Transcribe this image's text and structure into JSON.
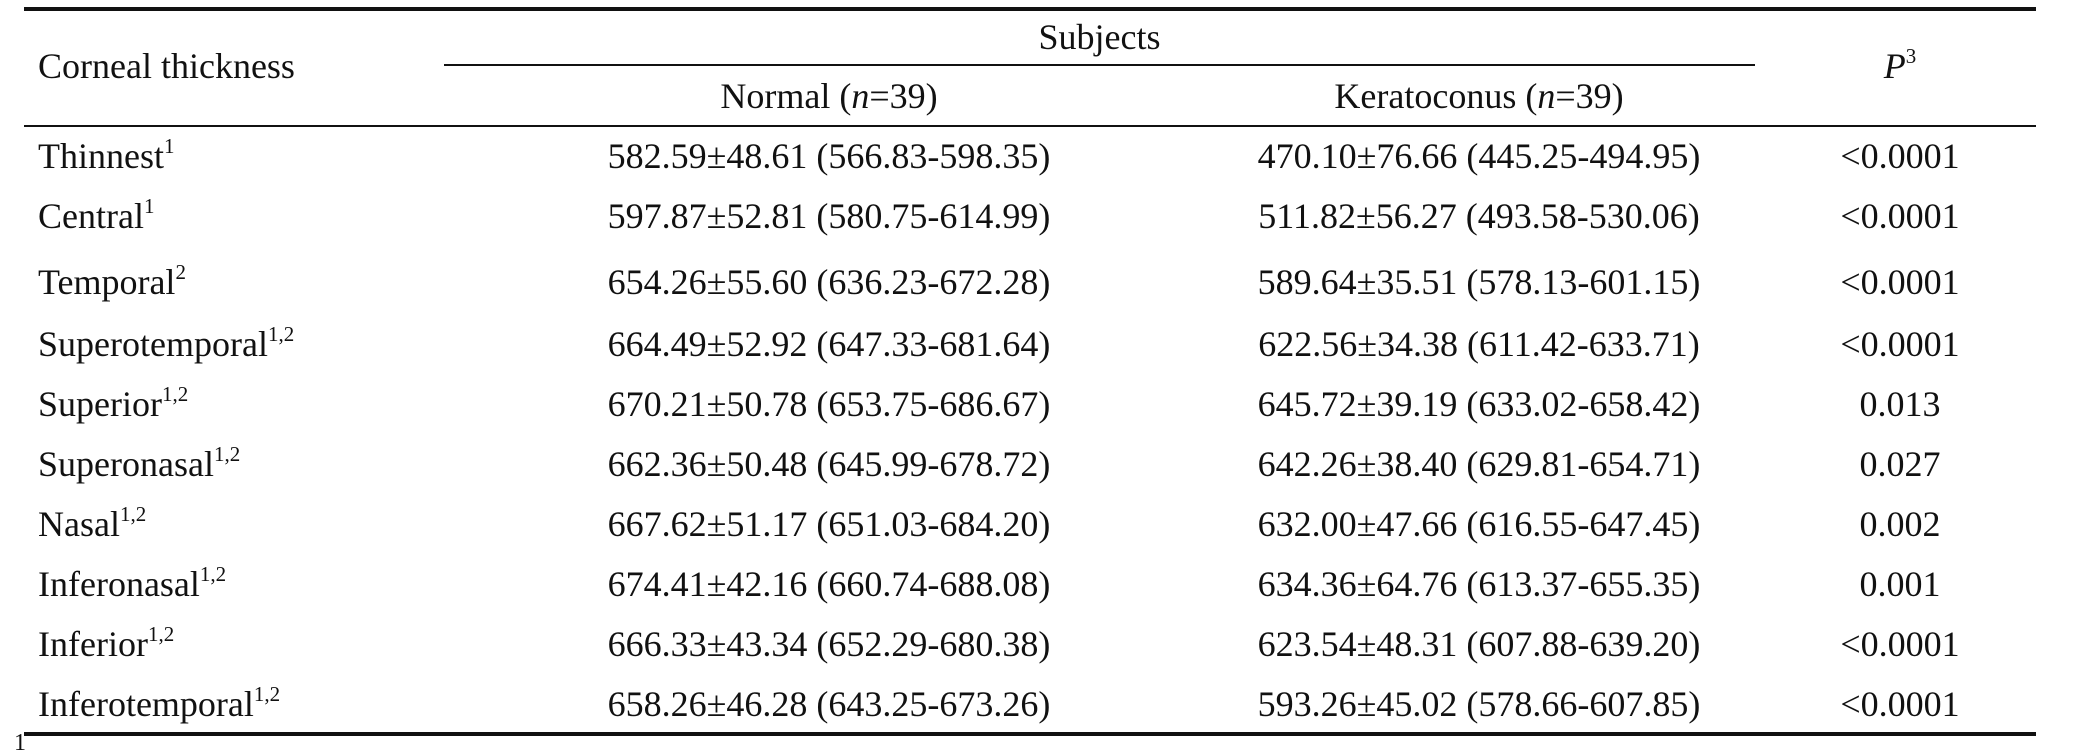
{
  "table": {
    "header": {
      "label_col": "Corneal thickness",
      "group": "Subjects",
      "normal_pre": "Normal (",
      "normal_n": "n",
      "normal_post": "=39)",
      "kera_pre": "Keratoconus (",
      "kera_n": "n",
      "kera_post": "=39)",
      "p_label": "P",
      "p_sup": "3"
    },
    "rows": [
      {
        "name": "Thinnest",
        "sup": "1",
        "normal": "582.59±48.61 (566.83-598.35)",
        "kera": "470.10±76.66 (445.25-494.95)",
        "p": "<0.0001"
      },
      {
        "name": "Central",
        "sup": "1",
        "normal": "597.87±52.81 (580.75-614.99)",
        "kera": "511.82±56.27 (493.58-530.06)",
        "p": "<0.0001"
      },
      {
        "name": "Temporal",
        "sup": "2",
        "normal": "654.26±55.60 (636.23-672.28)",
        "kera": "589.64±35.51 (578.13-601.15)",
        "p": "<0.0001"
      },
      {
        "name": "Superotemporal",
        "sup": "1,2",
        "normal": "664.49±52.92 (647.33-681.64)",
        "kera": "622.56±34.38 (611.42-633.71)",
        "p": "<0.0001"
      },
      {
        "name": "Superior",
        "sup": "1,2",
        "normal": "670.21±50.78 (653.75-686.67)",
        "kera": "645.72±39.19 (633.02-658.42)",
        "p": "0.013"
      },
      {
        "name": "Superonasal",
        "sup": "1,2",
        "normal": "662.36±50.48 (645.99-678.72)",
        "kera": "642.26±38.40 (629.81-654.71)",
        "p": "0.027"
      },
      {
        "name": "Nasal",
        "sup": "1,2",
        "normal": "667.62±51.17 (651.03-684.20)",
        "kera": "632.00±47.66 (616.55-647.45)",
        "p": "0.002"
      },
      {
        "name": "Inferonasal",
        "sup": "1,2",
        "normal": "674.41±42.16 (660.74-688.08)",
        "kera": "634.36±64.76 (613.37-655.35)",
        "p": "0.001"
      },
      {
        "name": "Inferior",
        "sup": "1,2",
        "normal": "666.33±43.34 (652.29-680.38)",
        "kera": "623.54±48.31 (607.88-639.20)",
        "p": "<0.0001"
      },
      {
        "name": "Inferotemporal",
        "sup": "1,2",
        "normal": "658.26±46.28 (643.25-673.26)",
        "kera": "593.26±45.02 (578.66-607.85)",
        "p": "<0.0001"
      }
    ],
    "footnote_fragment": "1"
  }
}
